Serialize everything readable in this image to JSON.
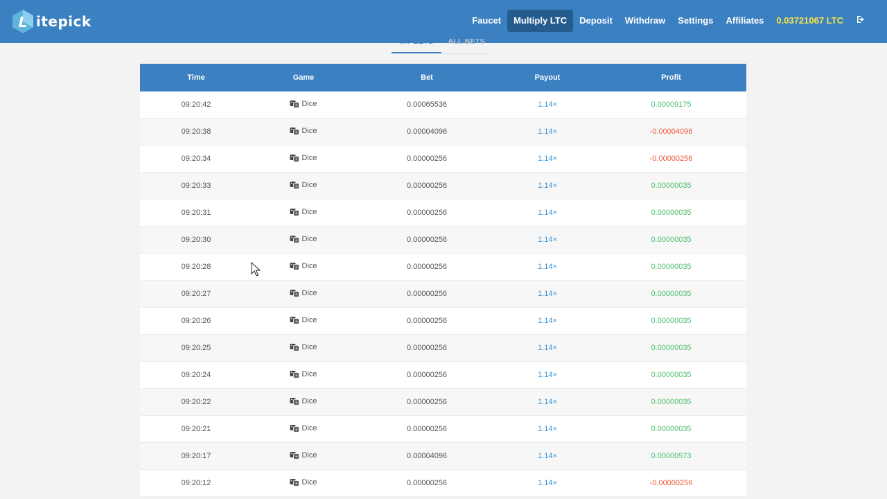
{
  "header": {
    "logo_text": "itepick",
    "nav": [
      {
        "label": "Faucet",
        "active": false
      },
      {
        "label": "Multiply LTC",
        "active": true
      },
      {
        "label": "Deposit",
        "active": false
      },
      {
        "label": "Withdraw",
        "active": false
      },
      {
        "label": "Settings",
        "active": false
      },
      {
        "label": "Affiliates",
        "active": false
      }
    ],
    "balance": "0.03721067 LTC",
    "logout_icon": "sign-out-icon"
  },
  "tabs": [
    {
      "label": "MY BETS",
      "active": true
    },
    {
      "label": "ALL BETS",
      "active": false
    }
  ],
  "table": {
    "columns": [
      "Time",
      "Game",
      "Bet",
      "Payout",
      "Profit"
    ],
    "rows": [
      {
        "time": "09:20:42",
        "game": "Dice",
        "bet": "0.00065536",
        "payout": "1.14×",
        "profit": "0.00009175",
        "win": true
      },
      {
        "time": "09:20:38",
        "game": "Dice",
        "bet": "0.00004096",
        "payout": "1.14×",
        "profit": "-0.00004096",
        "win": false
      },
      {
        "time": "09:20:34",
        "game": "Dice",
        "bet": "0.00000256",
        "payout": "1.14×",
        "profit": "-0.00000256",
        "win": false
      },
      {
        "time": "09:20:33",
        "game": "Dice",
        "bet": "0.00000256",
        "payout": "1.14×",
        "profit": "0.00000035",
        "win": true
      },
      {
        "time": "09:20:31",
        "game": "Dice",
        "bet": "0.00000256",
        "payout": "1.14×",
        "profit": "0.00000035",
        "win": true
      },
      {
        "time": "09:20:30",
        "game": "Dice",
        "bet": "0.00000256",
        "payout": "1.14×",
        "profit": "0.00000035",
        "win": true
      },
      {
        "time": "09:20:28",
        "game": "Dice",
        "bet": "0.00000256",
        "payout": "1.14×",
        "profit": "0.00000035",
        "win": true
      },
      {
        "time": "09:20:27",
        "game": "Dice",
        "bet": "0.00000256",
        "payout": "1.14×",
        "profit": "0.00000035",
        "win": true
      },
      {
        "time": "09:20:26",
        "game": "Dice",
        "bet": "0.00000256",
        "payout": "1.14×",
        "profit": "0.00000035",
        "win": true
      },
      {
        "time": "09:20:25",
        "game": "Dice",
        "bet": "0.00000256",
        "payout": "1.14×",
        "profit": "0.00000035",
        "win": true
      },
      {
        "time": "09:20:24",
        "game": "Dice",
        "bet": "0.00000256",
        "payout": "1.14×",
        "profit": "0.00000035",
        "win": true
      },
      {
        "time": "09:20:22",
        "game": "Dice",
        "bet": "0.00000256",
        "payout": "1.14×",
        "profit": "0.00000035",
        "win": true
      },
      {
        "time": "09:20:21",
        "game": "Dice",
        "bet": "0.00000256",
        "payout": "1.14×",
        "profit": "0.00000035",
        "win": true
      },
      {
        "time": "09:20:17",
        "game": "Dice",
        "bet": "0.00004096",
        "payout": "1.14×",
        "profit": "0.00000573",
        "win": true
      },
      {
        "time": "09:20:12",
        "game": "Dice",
        "bet": "0.00000256",
        "payout": "1.14×",
        "profit": "-0.00000256",
        "win": false
      }
    ]
  },
  "colors": {
    "header_bg": "#3b80c1",
    "nav_active_bg": "#245c8e",
    "balance": "#f7e34a",
    "payout": "#3a94d6",
    "profit_positive": "#4cbf6a",
    "profit_negative": "#ee5a38"
  }
}
